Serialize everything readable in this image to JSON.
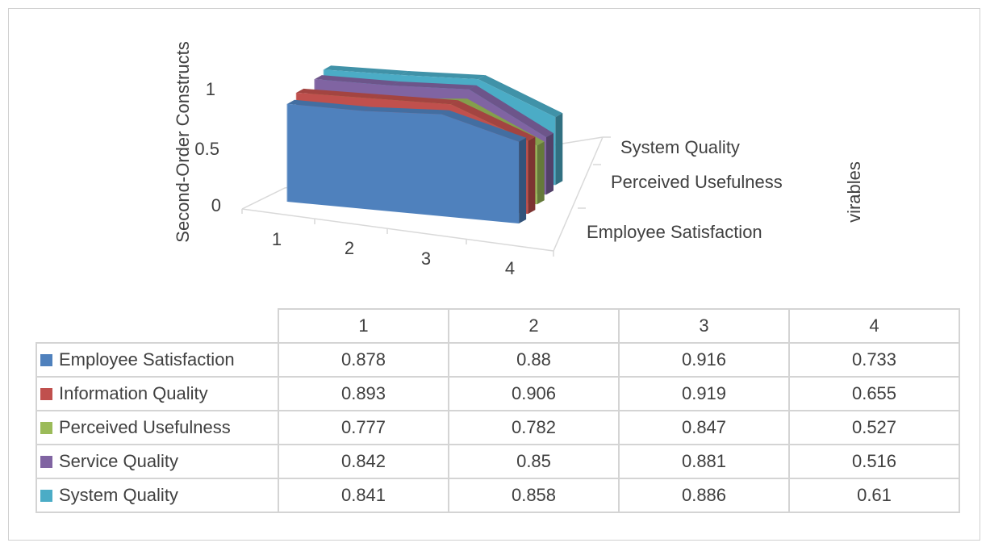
{
  "chart_data": {
    "type": "area",
    "variant": "3d-area",
    "categories": [
      "1",
      "2",
      "3",
      "4"
    ],
    "series": [
      {
        "name": "Employee Satisfaction",
        "color": "#4F81BD",
        "values": [
          0.878,
          0.88,
          0.916,
          0.733
        ]
      },
      {
        "name": "Information Quality",
        "color": "#C0504D",
        "values": [
          0.893,
          0.906,
          0.919,
          0.655
        ]
      },
      {
        "name": "Perceived Usefulness",
        "color": "#9BBB59",
        "values": [
          0.777,
          0.782,
          0.847,
          0.527
        ]
      },
      {
        "name": "Service Quality",
        "color": "#8064A2",
        "values": [
          0.842,
          0.85,
          0.881,
          0.516
        ]
      },
      {
        "name": "System Quality",
        "color": "#4BACC6",
        "values": [
          0.841,
          0.858,
          0.886,
          0.61
        ]
      }
    ],
    "ylabel": "Second-Order Constructs",
    "zlabel": "virables",
    "yticks": [
      "0",
      "0.5",
      "1"
    ],
    "depth_tick_labels": [
      "Employee Satisfaction",
      "Perceived Usefulness",
      "System Quality"
    ],
    "ylim": [
      0,
      1
    ],
    "legend": "data-table below chart",
    "grid": false
  }
}
